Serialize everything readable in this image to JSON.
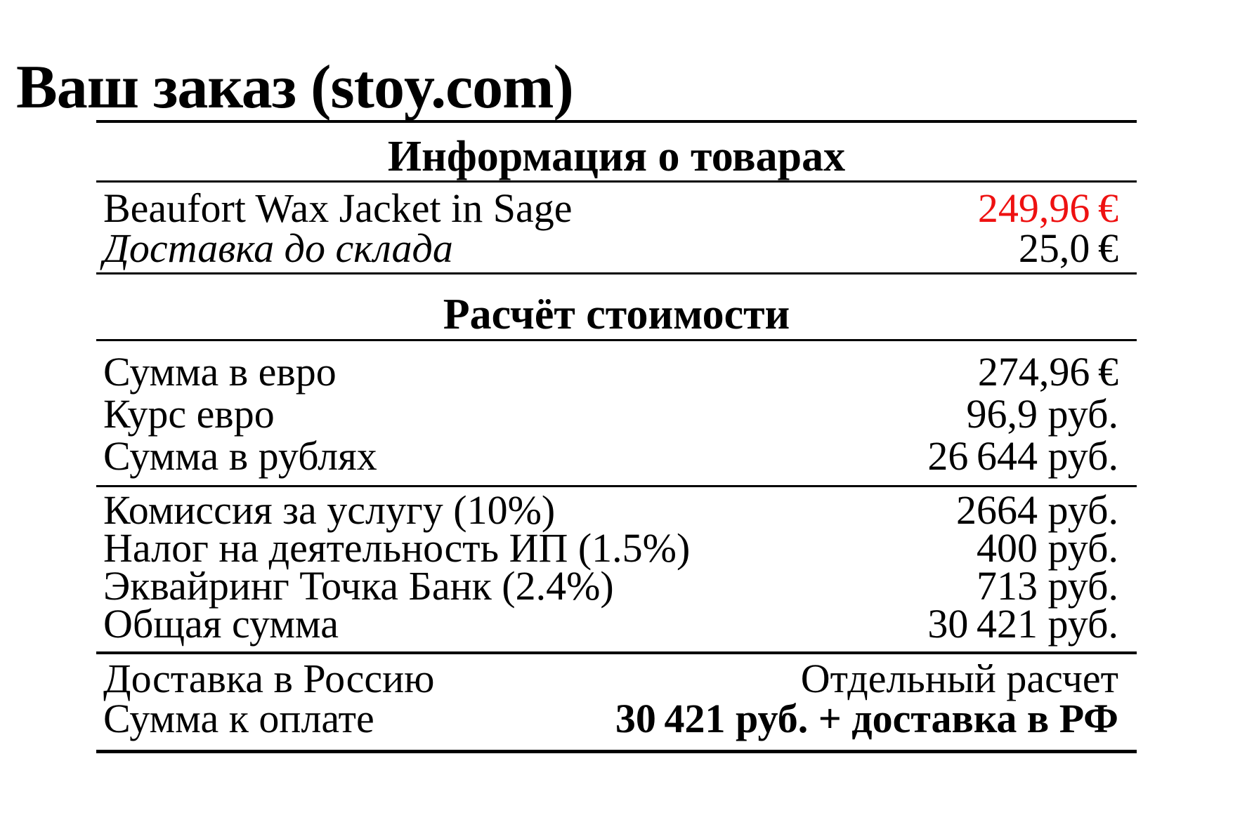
{
  "page": {
    "title": "Ваш заказ (stoy.com)"
  },
  "colors": {
    "accent_red": "#ee1111",
    "text": "#000000",
    "rule": "#000000",
    "background": "#ffffff"
  },
  "table": {
    "section_products": {
      "header": "Информация о товарах",
      "rows": [
        {
          "label": "Beaufort Wax Jacket in Sage",
          "value": "249,96 €"
        },
        {
          "label": "Доставка до склада",
          "value": "25,0 €"
        }
      ]
    },
    "section_costs": {
      "header": "Расчёт стоимости",
      "group_euro": [
        {
          "label": "Сумма в евро",
          "value": "274,96 €"
        },
        {
          "label": "Курс евро",
          "value": "96,9 руб."
        },
        {
          "label": "Сумма в рублях",
          "value": "26 644 руб."
        }
      ],
      "group_fees": [
        {
          "label": "Комиссия за услугу (10%)",
          "value": "2664 руб."
        },
        {
          "label": "Налог на деятельность ИП (1.5%)",
          "value": "400 руб."
        },
        {
          "label": "Эквайринг Точка Банк (2.4%)",
          "value": "713 руб."
        },
        {
          "label": "Общая сумма",
          "value": "30 421 руб."
        }
      ],
      "group_total": [
        {
          "label": "Доставка в Россию",
          "value": "Отдельный расчет"
        },
        {
          "label": "Сумма к оплате",
          "value": "30 421 руб. + доставка в РФ"
        }
      ]
    }
  }
}
